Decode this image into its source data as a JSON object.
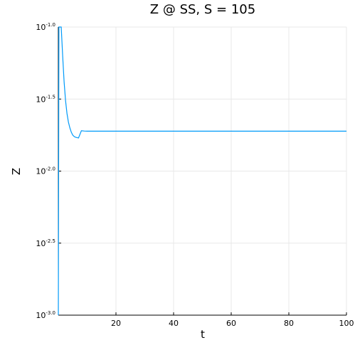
{
  "chart_data": {
    "type": "line",
    "title": "Z @ SS, S = 105",
    "xlabel": "t",
    "ylabel": "Z",
    "xlim": [
      0,
      100
    ],
    "ylim_log10": [
      -3.0,
      -1.0
    ],
    "yscale": "log10",
    "x_ticks": [
      20,
      40,
      60,
      80,
      100
    ],
    "y_ticks": [
      {
        "base": "10",
        "exp": "-1.0",
        "value": -1.0
      },
      {
        "base": "10",
        "exp": "-1.5",
        "value": -1.5
      },
      {
        "base": "10",
        "exp": "-2.0",
        "value": -2.0
      },
      {
        "base": "10",
        "exp": "-2.5",
        "value": -2.5
      },
      {
        "base": "10",
        "exp": "-3.0",
        "value": -3.0
      }
    ],
    "grid": true,
    "legend": "none",
    "series": [
      {
        "color": "#009af9",
        "x": [
          0,
          0.2,
          0.6,
          1.0,
          1.5,
          2.0,
          2.5,
          3.0,
          3.5,
          4.0,
          4.5,
          5.0,
          5.5,
          6.0,
          7.0,
          8.0,
          9.0,
          10.0,
          12.0,
          15.0,
          20.0,
          30.0,
          40.0,
          50.0,
          60.0,
          70.0,
          80.0,
          90.0,
          100.0
        ],
        "log10_y": [
          -3.0,
          -1.0,
          -1.0,
          -1.0,
          -1.2,
          -1.38,
          -1.51,
          -1.6,
          -1.66,
          -1.7,
          -1.73,
          -1.75,
          -1.76,
          -1.765,
          -1.77,
          -1.72,
          -1.722,
          -1.723,
          -1.723,
          -1.723,
          -1.723,
          -1.723,
          -1.723,
          -1.723,
          -1.723,
          -1.723,
          -1.723,
          -1.723,
          -1.723
        ]
      }
    ]
  }
}
